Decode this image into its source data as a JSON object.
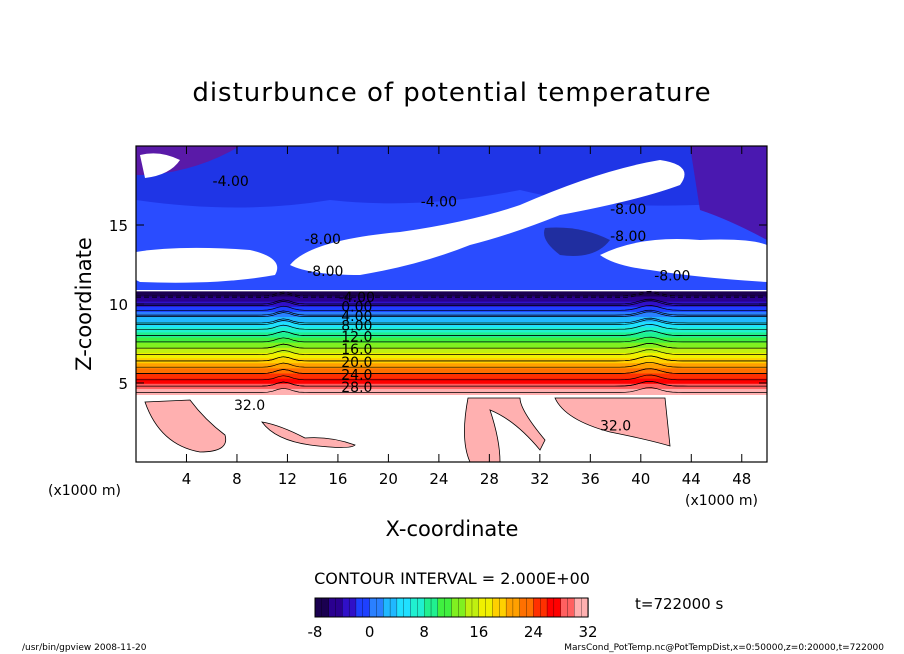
{
  "chart_data": {
    "type": "heatmap",
    "title": "disturbunce of potential temperature",
    "xlabel": "X-coordinate",
    "ylabel": "Z-coordinate",
    "x_unit_left": "(x1000 m)",
    "x_unit_right": "(x1000 m)",
    "xlim": [
      0,
      50
    ],
    "ylim": [
      0,
      20
    ],
    "x_ticks": [
      4,
      8,
      12,
      16,
      20,
      24,
      28,
      32,
      36,
      40,
      44,
      48
    ],
    "y_ticks": [
      5,
      10,
      15
    ],
    "contour_interval_label": "CONTOUR INTERVAL = 2.000E+00",
    "time_label": "t=722000 s",
    "colorbar": {
      "min": -8,
      "max": 32,
      "ticks": [
        -8,
        0,
        8,
        16,
        24,
        32
      ],
      "colors": [
        "#1a0050",
        "#2a0090",
        "#3010c8",
        "#1e40ff",
        "#2a80ff",
        "#20b8ff",
        "#20e0ff",
        "#20f0d0",
        "#20f090",
        "#40f040",
        "#80f020",
        "#c0f010",
        "#f0f000",
        "#ffd000",
        "#ffa000",
        "#ff7000",
        "#ff3000",
        "#ff0000",
        "#ff6060",
        "#ffb0b0"
      ]
    },
    "levels": [
      {
        "value": 28,
        "label": "28.0",
        "z": 4.8
      },
      {
        "value": 24,
        "label": "24.0",
        "z": 5.6
      },
      {
        "value": 20,
        "label": "20.0",
        "z": 6.4
      },
      {
        "value": 16,
        "label": "16.0",
        "z": 7.2
      },
      {
        "value": 12,
        "label": "12.0",
        "z": 8.0
      },
      {
        "value": 8,
        "label": "8.00",
        "z": 8.7
      },
      {
        "value": 4,
        "label": "4.00",
        "z": 9.3
      },
      {
        "value": 0,
        "label": "0.00",
        "z": 9.9
      },
      {
        "value": -4,
        "label": "-4.00",
        "z": 10.5
      }
    ],
    "annotations": [
      {
        "label": "32.0",
        "x": 9.0,
        "z": 3.6
      },
      {
        "label": "32.0",
        "x": 38.0,
        "z": 2.3
      },
      {
        "label": "-8.00",
        "x": 14.8,
        "z": 14.1
      },
      {
        "label": "-8.00",
        "x": 15.0,
        "z": 12.1
      },
      {
        "label": "-8.00",
        "x": 39.0,
        "z": 14.3
      },
      {
        "label": "-8.00",
        "x": 42.5,
        "z": 11.8
      },
      {
        "label": "-8.00",
        "x": 39.0,
        "z": 16.0
      },
      {
        "label": "-4.00",
        "x": 7.5,
        "z": 17.8
      },
      {
        "label": "-4.00",
        "x": 24.0,
        "z": 16.5
      }
    ]
  },
  "footer": {
    "left": "/usr/bin/gpview  2008-11-20",
    "right": "MarsCond_PotTemp.nc@PotTempDist,x=0:50000,z=0:20000,t=722000"
  }
}
